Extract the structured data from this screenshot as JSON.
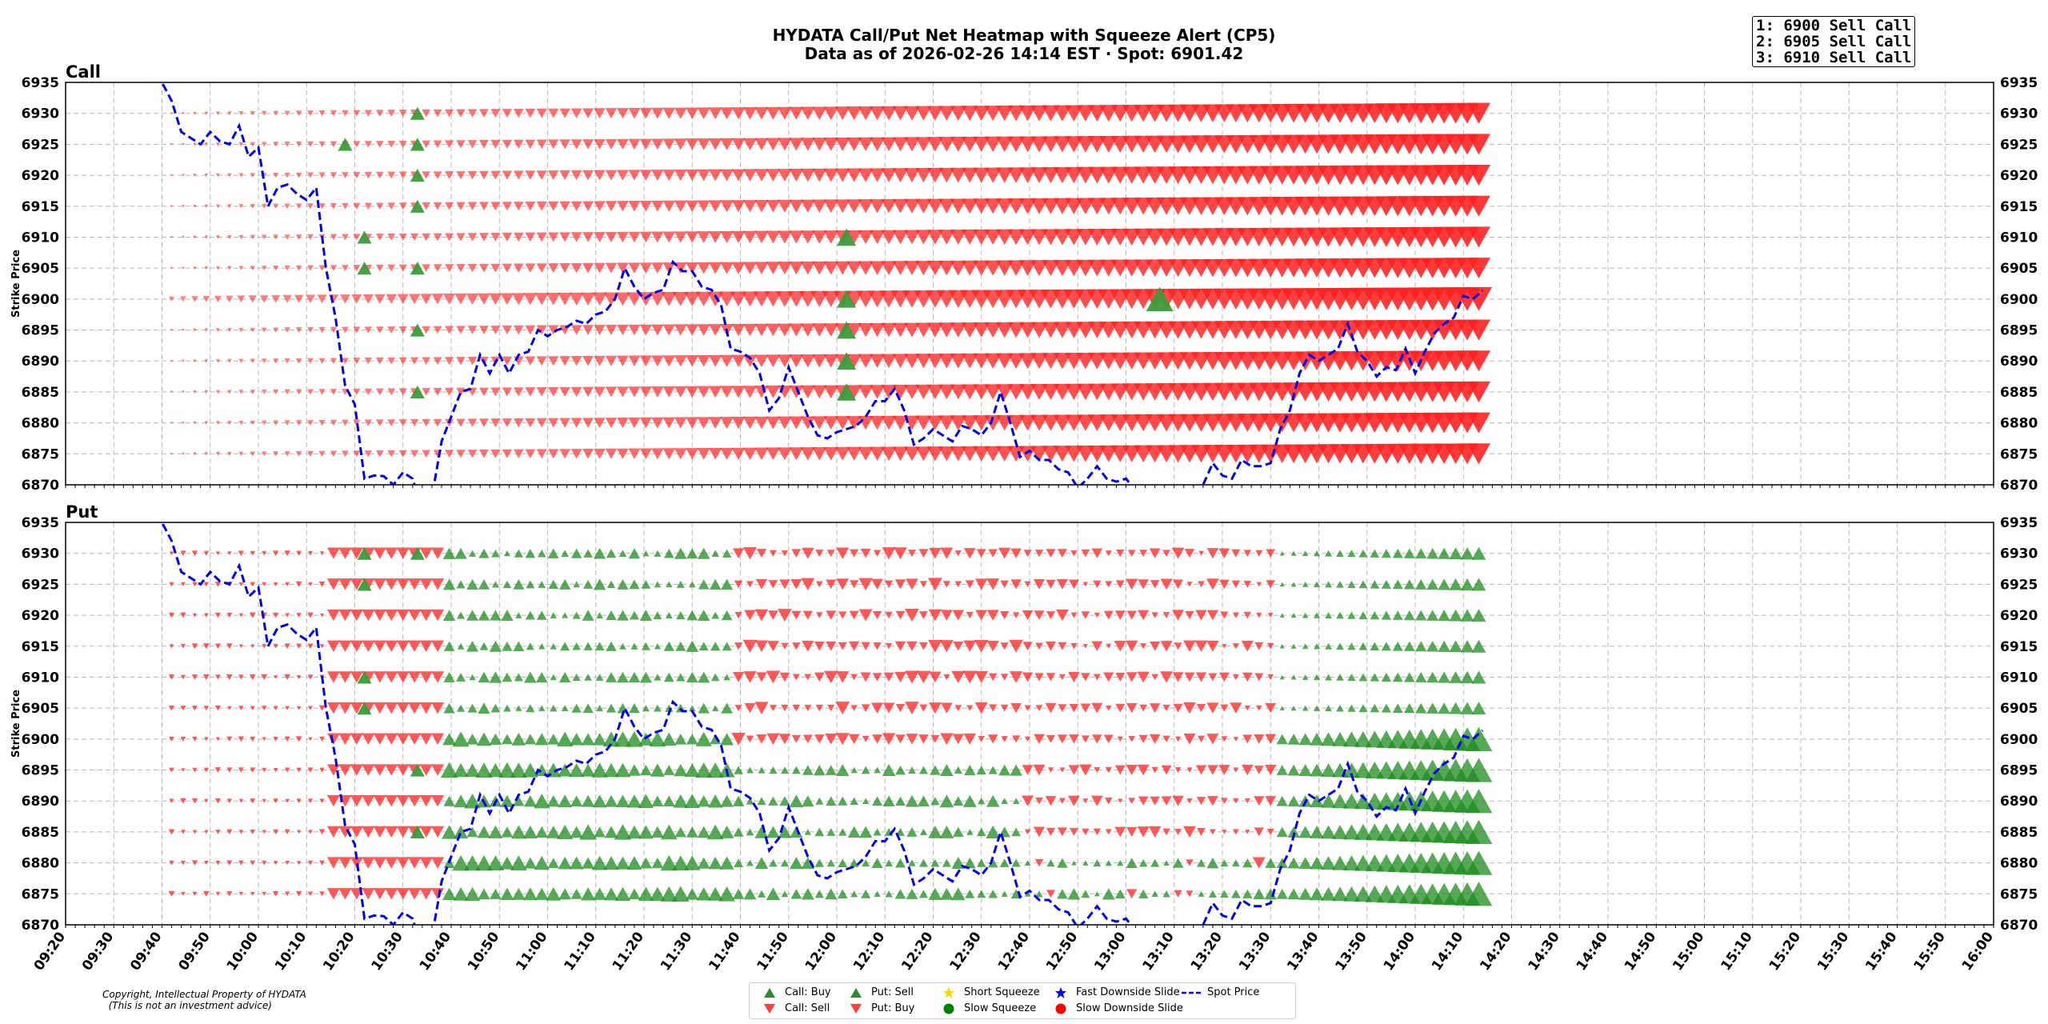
{
  "title": {
    "line1": "HYDATA Call/Put Net Heatmap with Squeeze Alert (CP5)",
    "line2": "Data as of 2026-02-26 14:14 EST · Spot: 6901.42"
  },
  "ranking": [
    "1: 6900 Sell Call",
    "2: 6905 Sell Call",
    "3: 6910 Sell Call"
  ],
  "copyright": {
    "line1": "Copyright, Intellectual Property of HYDATA",
    "line2": "  (This is not an investment advice)"
  },
  "legend": [
    {
      "label": "Call: Buy",
      "icon": "triangle-up",
      "color": "#2e8b2e"
    },
    {
      "label": "Call: Sell",
      "icon": "triangle-down",
      "color": "#ff3b3b"
    },
    {
      "label": "Put: Sell",
      "icon": "triangle-up",
      "color": "#2e8b2e"
    },
    {
      "label": "Put: Buy",
      "icon": "triangle-down",
      "color": "#ff3b3b"
    },
    {
      "label": "Short Squeeze",
      "icon": "star",
      "color": "#ffd700"
    },
    {
      "label": "Slow Squeeze",
      "icon": "circle",
      "color": "#008000"
    },
    {
      "label": "Fast Downside Slide",
      "icon": "star",
      "color": "#0000ff"
    },
    {
      "label": "Slow Downside Slide",
      "icon": "circle",
      "color": "#ff0000"
    },
    {
      "label": "Spot Price",
      "icon": "dashed-line",
      "color": "#0000ff"
    }
  ],
  "chart_data": [
    {
      "type": "scatter",
      "title": "Call",
      "ylabel": "Strike Price",
      "ylim": [
        6870,
        6935
      ],
      "yticks": [
        6870,
        6875,
        6880,
        6885,
        6890,
        6895,
        6900,
        6905,
        6910,
        6915,
        6920,
        6925,
        6930,
        6935
      ],
      "xlim": [
        "09:20",
        "16:00"
      ],
      "grid": true,
      "strikes": [
        6875,
        6880,
        6885,
        6890,
        6895,
        6900,
        6905,
        6910,
        6915,
        6920,
        6925,
        6930
      ],
      "markers": "red down-triangles (Call: Sell) growing in size from ~09:40 to 14:14 on every strike",
      "green_markers": [
        {
          "time": "10:33",
          "strike": 6930
        },
        {
          "time": "10:33",
          "strike": 6925
        },
        {
          "time": "10:33",
          "strike": 6920
        },
        {
          "time": "10:33",
          "strike": 6915
        },
        {
          "time": "10:33",
          "strike": 6905
        },
        {
          "time": "10:33",
          "strike": 6895
        },
        {
          "time": "10:33",
          "strike": 6885
        },
        {
          "time": "10:18",
          "strike": 6925
        },
        {
          "time": "10:22",
          "strike": 6910
        },
        {
          "time": "10:22",
          "strike": 6905
        },
        {
          "time": "12:02",
          "strike": 6910
        },
        {
          "time": "12:02",
          "strike": 6900
        },
        {
          "time": "12:02",
          "strike": 6895
        },
        {
          "time": "12:02",
          "strike": 6890
        },
        {
          "time": "12:02",
          "strike": 6885
        },
        {
          "time": "13:07",
          "strike": 6900
        }
      ]
    },
    {
      "type": "scatter",
      "title": "Put",
      "ylabel": "Strike Price",
      "ylim": [
        6870,
        6935
      ],
      "yticks": [
        6870,
        6875,
        6880,
        6885,
        6890,
        6895,
        6900,
        6905,
        6910,
        6915,
        6920,
        6925,
        6930,
        6935
      ],
      "xlim": [
        "09:20",
        "16:00"
      ],
      "xticks": [
        "09:20",
        "09:30",
        "09:40",
        "09:50",
        "10:00",
        "10:10",
        "10:20",
        "10:30",
        "10:40",
        "10:50",
        "11:00",
        "11:10",
        "11:20",
        "11:30",
        "11:40",
        "11:50",
        "12:00",
        "12:10",
        "12:20",
        "12:30",
        "12:40",
        "12:50",
        "13:00",
        "13:10",
        "13:20",
        "13:30",
        "13:40",
        "13:50",
        "14:00",
        "14:10",
        "14:20",
        "14:30",
        "14:40",
        "14:50",
        "15:00",
        "15:10",
        "15:20",
        "15:30",
        "15:40",
        "15:50",
        "16:00"
      ],
      "grid": true,
      "strikes": [
        6875,
        6880,
        6885,
        6890,
        6895,
        6900,
        6905,
        6910,
        6915,
        6920,
        6925,
        6930
      ],
      "markers": "red down-triangles (Put: Buy) before ~10:40, mixed red/green through midday, green up-triangles (Put: Sell) growing from 13:33 to 14:14",
      "green_markers": [
        {
          "time": "10:22",
          "strike": 6930
        },
        {
          "time": "10:33",
          "strike": 6930
        },
        {
          "time": "10:22",
          "strike": 6925
        },
        {
          "time": "10:22",
          "strike": 6910
        },
        {
          "time": "10:22",
          "strike": 6905
        },
        {
          "time": "10:33",
          "strike": 6895
        },
        {
          "time": "10:33",
          "strike": 6885
        }
      ]
    }
  ],
  "spot_series": {
    "name": "Spot Price",
    "points": [
      [
        "09:38",
        6935.5
      ],
      [
        "09:40",
        6935
      ],
      [
        "09:42",
        6932
      ],
      [
        "09:44",
        6927
      ],
      [
        "09:46",
        6926
      ],
      [
        "09:48",
        6925
      ],
      [
        "09:50",
        6927
      ],
      [
        "09:52",
        6925.5
      ],
      [
        "09:54",
        6925
      ],
      [
        "09:56",
        6928
      ],
      [
        "09:58",
        6923
      ],
      [
        "10:00",
        6924.5
      ],
      [
        "10:02",
        6915
      ],
      [
        "10:04",
        6918
      ],
      [
        "10:06",
        6918.5
      ],
      [
        "10:08",
        6917
      ],
      [
        "10:10",
        6916
      ],
      [
        "10:12",
        6918
      ],
      [
        "10:14",
        6905
      ],
      [
        "10:16",
        6897
      ],
      [
        "10:18",
        6886
      ],
      [
        "10:20",
        6883
      ],
      [
        "10:22",
        6871
      ],
      [
        "10:24",
        6871.5
      ],
      [
        "10:26",
        6871.4
      ],
      [
        "10:28",
        6870
      ],
      [
        "10:30",
        6872
      ],
      [
        "10:32",
        6871
      ],
      [
        "10:34",
        6866
      ],
      [
        "10:36",
        6868
      ],
      [
        "10:38",
        6877
      ],
      [
        "10:40",
        6881
      ],
      [
        "10:42",
        6885
      ],
      [
        "10:44",
        6885.5
      ],
      [
        "10:46",
        6891
      ],
      [
        "10:48",
        6888
      ],
      [
        "10:50",
        6891
      ],
      [
        "10:52",
        6888
      ],
      [
        "10:54",
        6891
      ],
      [
        "10:56",
        6891.5
      ],
      [
        "10:58",
        6895
      ],
      [
        "11:00",
        6894
      ],
      [
        "11:02",
        6895
      ],
      [
        "11:04",
        6895.5
      ],
      [
        "11:06",
        6896.5
      ],
      [
        "11:08",
        6896
      ],
      [
        "11:10",
        6897.5
      ],
      [
        "11:12",
        6898
      ],
      [
        "11:14",
        6900
      ],
      [
        "11:16",
        6905
      ],
      [
        "11:18",
        6902
      ],
      [
        "11:20",
        6900
      ],
      [
        "11:22",
        6901
      ],
      [
        "11:24",
        6901.5
      ],
      [
        "11:26",
        6906
      ],
      [
        "11:28",
        6904.5
      ],
      [
        "11:30",
        6904.5
      ],
      [
        "11:32",
        6902
      ],
      [
        "11:34",
        6901.5
      ],
      [
        "11:36",
        6899
      ],
      [
        "11:38",
        6892
      ],
      [
        "11:40",
        6891.5
      ],
      [
        "11:42",
        6890.5
      ],
      [
        "11:44",
        6888
      ],
      [
        "11:46",
        6882
      ],
      [
        "11:48",
        6884
      ],
      [
        "11:50",
        6889
      ],
      [
        "11:52",
        6885
      ],
      [
        "11:54",
        6881
      ],
      [
        "11:56",
        6878
      ],
      [
        "11:58",
        6877.5
      ],
      [
        "12:00",
        6878.5
      ],
      [
        "12:02",
        6879
      ],
      [
        "12:04",
        6879.5
      ],
      [
        "12:06",
        6881
      ],
      [
        "12:08",
        6883.5
      ],
      [
        "12:10",
        6883.5
      ],
      [
        "12:12",
        6885.5
      ],
      [
        "12:14",
        6882
      ],
      [
        "12:16",
        6876.5
      ],
      [
        "12:18",
        6877.5
      ],
      [
        "12:20",
        6879
      ],
      [
        "12:22",
        6878
      ],
      [
        "12:24",
        6877
      ],
      [
        "12:26",
        6879.5
      ],
      [
        "12:28",
        6879
      ],
      [
        "12:30",
        6878
      ],
      [
        "12:32",
        6880
      ],
      [
        "12:34",
        6885
      ],
      [
        "12:36",
        6880
      ],
      [
        "12:38",
        6874.5
      ],
      [
        "12:40",
        6875.5
      ],
      [
        "12:42",
        6874
      ],
      [
        "12:44",
        6874
      ],
      [
        "12:46",
        6872.5
      ],
      [
        "12:48",
        6872
      ],
      [
        "12:50",
        6869.5
      ],
      [
        "12:52",
        6871
      ],
      [
        "12:54",
        6873
      ],
      [
        "12:56",
        6871
      ],
      [
        "12:58",
        6870.5
      ],
      [
        "13:00",
        6871
      ],
      [
        "13:02",
        6869
      ],
      [
        "13:04",
        6868
      ],
      [
        "13:06",
        6865
      ],
      [
        "13:08",
        6864
      ],
      [
        "13:10",
        6864
      ],
      [
        "13:12",
        6866
      ],
      [
        "13:14",
        6868
      ],
      [
        "13:16",
        6870
      ],
      [
        "13:18",
        6873.5
      ],
      [
        "13:20",
        6871.5
      ],
      [
        "13:22",
        6871
      ],
      [
        "13:24",
        6874
      ],
      [
        "13:26",
        6873
      ],
      [
        "13:28",
        6873
      ],
      [
        "13:30",
        6873.5
      ],
      [
        "13:32",
        6879
      ],
      [
        "13:34",
        6882
      ],
      [
        "13:36",
        6888
      ],
      [
        "13:38",
        6891
      ],
      [
        "13:40",
        6890
      ],
      [
        "13:42",
        6891
      ],
      [
        "13:44",
        6892
      ],
      [
        "13:46",
        6896
      ],
      [
        "13:48",
        6891.5
      ],
      [
        "13:50",
        6890
      ],
      [
        "13:52",
        6887.5
      ],
      [
        "13:54",
        6889
      ],
      [
        "13:56",
        6888.5
      ],
      [
        "13:58",
        6892
      ],
      [
        "14:00",
        6888
      ],
      [
        "14:02",
        6891.5
      ],
      [
        "14:04",
        6894.5
      ],
      [
        "14:06",
        6896
      ],
      [
        "14:08",
        6897
      ],
      [
        "14:10",
        6900.5
      ],
      [
        "14:12",
        6900
      ],
      [
        "14:14",
        6901.4
      ]
    ]
  }
}
